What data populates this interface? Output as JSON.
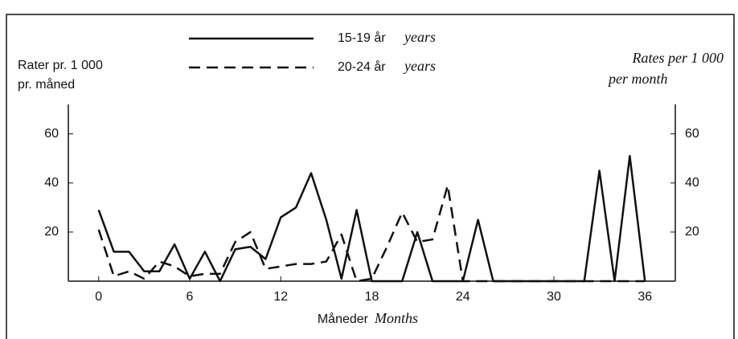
{
  "chart_data": {
    "type": "line",
    "ylabel": [
      "Rater pr. 1 000",
      "pr. måned"
    ],
    "y2label": [
      "Rates per 1 000",
      "per month"
    ],
    "xlabel": "Måneder",
    "xlabel_en": "Months",
    "legend_note": "years",
    "x": [
      0,
      1,
      2,
      3,
      4,
      5,
      6,
      7,
      8,
      9,
      10,
      11,
      12,
      13,
      14,
      15,
      16,
      17,
      18,
      19,
      20,
      21,
      22,
      23,
      24,
      25,
      26,
      27,
      28,
      29,
      30,
      31,
      32,
      33,
      34,
      35,
      36
    ],
    "series": [
      {
        "name": "15-19 år",
        "color": "#111111",
        "dash": "solid",
        "values": [
          29,
          12,
          12,
          4,
          4,
          15,
          1,
          12,
          0,
          13,
          14,
          9,
          26,
          30,
          44,
          25,
          1,
          29,
          0,
          0,
          0,
          20,
          0,
          0,
          0,
          25,
          0,
          0,
          0,
          0,
          0,
          0,
          0,
          45,
          0,
          51,
          0
        ]
      },
      {
        "name": "20-24 år",
        "color": "#111111",
        "dash": "dashed",
        "values": [
          21,
          2,
          4,
          1,
          8,
          6,
          2,
          3,
          3,
          16,
          20,
          5,
          6,
          7,
          7,
          8,
          19,
          0,
          1,
          14,
          28,
          16,
          17,
          39,
          0,
          0,
          0,
          0,
          0,
          0,
          0,
          0,
          0,
          0,
          0,
          0,
          0
        ]
      }
    ],
    "xlim": [
      -2,
      38
    ],
    "xticks": [
      0,
      6,
      12,
      18,
      24,
      30,
      36
    ],
    "ylim": [
      0,
      72
    ],
    "yticks": [
      20,
      40,
      60
    ],
    "y2lim": [
      0,
      72
    ],
    "y2ticks": [
      20,
      40,
      60
    ],
    "grid": false
  }
}
